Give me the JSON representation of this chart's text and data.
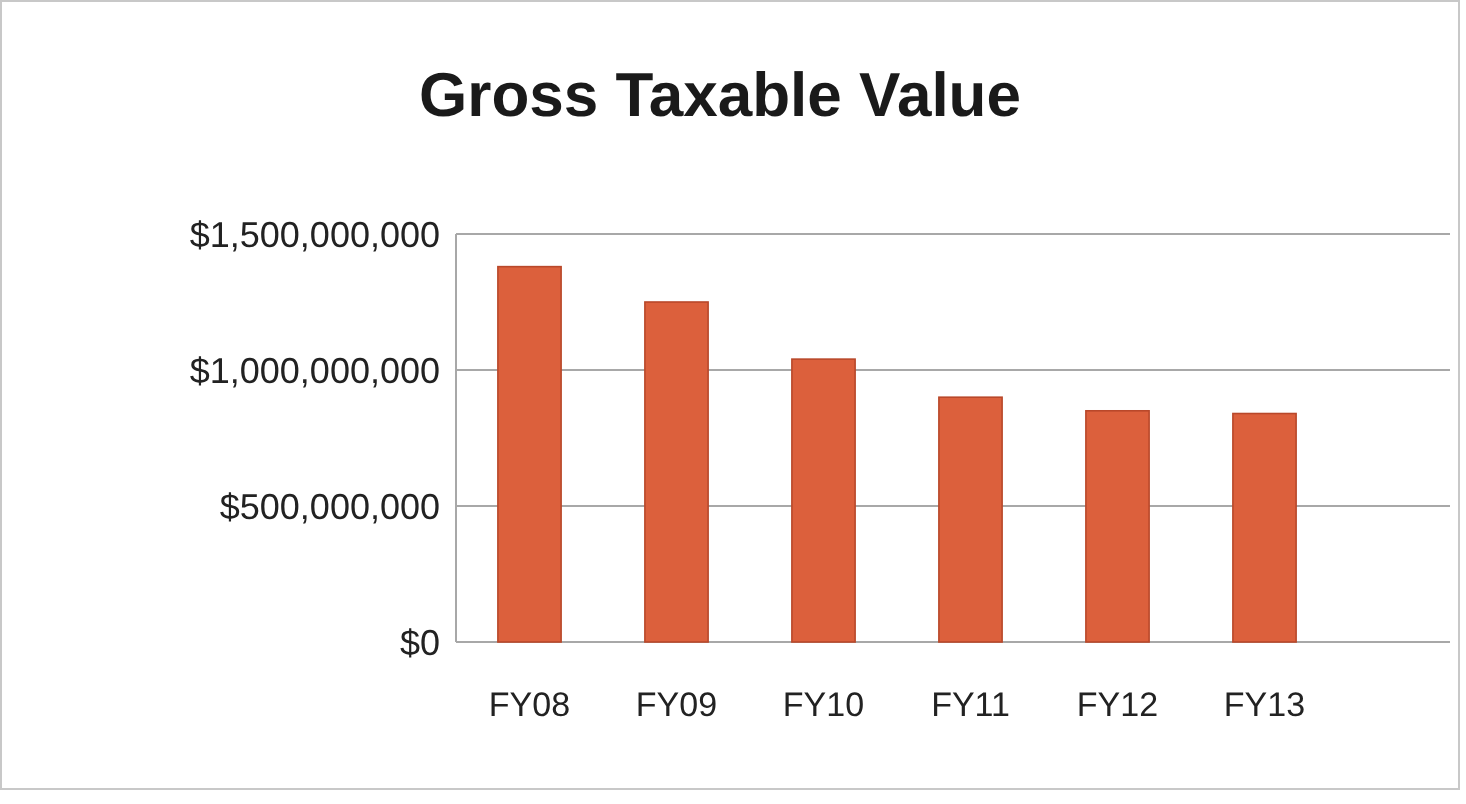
{
  "chart_data": {
    "type": "bar",
    "title": "Gross Taxable Value",
    "categories": [
      "FY08",
      "FY09",
      "FY10",
      "FY11",
      "FY12",
      "FY13"
    ],
    "values": [
      1380000000,
      1250000000,
      1040000000,
      900000000,
      850000000,
      840000000
    ],
    "color": "#dc603c",
    "ylim": [
      0,
      1500000000
    ],
    "yticks": [
      {
        "value": 0,
        "label": "$0"
      },
      {
        "value": 500000000,
        "label": "$500,000,000"
      },
      {
        "value": 1000000000,
        "label": "$1,000,000,000"
      },
      {
        "value": 1500000000,
        "label": "$1,500,000,000"
      }
    ],
    "grid": "y"
  }
}
